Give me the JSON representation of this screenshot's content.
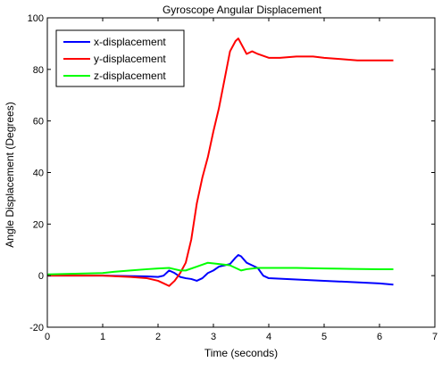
{
  "chart_data": {
    "type": "line",
    "title": "Gyroscope Angular Displacement",
    "xlabel": "Time (seconds)",
    "ylabel": "Angle Displacement (Degrees)",
    "xlim": [
      0,
      7
    ],
    "ylim": [
      -20,
      100
    ],
    "xticks": [
      0,
      1,
      2,
      3,
      4,
      5,
      6,
      7
    ],
    "yticks": [
      -20,
      0,
      20,
      40,
      60,
      80,
      100
    ],
    "xtick_labels": [
      "0",
      "1",
      "2",
      "3",
      "4",
      "5",
      "6",
      "7"
    ],
    "ytick_labels": [
      "-20",
      "0",
      "20",
      "40",
      "60",
      "80",
      "100"
    ],
    "grid": false,
    "legend": "top-left",
    "series": [
      {
        "name": "x-displacement",
        "color": "#0000ff",
        "x": [
          0,
          1,
          1.8,
          2.0,
          2.1,
          2.2,
          2.3,
          2.4,
          2.5,
          2.6,
          2.7,
          2.8,
          2.9,
          3.0,
          3.1,
          3.2,
          3.3,
          3.4,
          3.45,
          3.5,
          3.6,
          3.7,
          3.8,
          3.9,
          4.0,
          4.5,
          5.0,
          5.5,
          6.0,
          6.25
        ],
        "y": [
          0,
          0,
          -0.3,
          -0.5,
          0,
          2,
          1,
          -0.5,
          -1,
          -1.3,
          -2,
          -1,
          1,
          2,
          3.5,
          4,
          4.5,
          7,
          8,
          7.5,
          5,
          4,
          3,
          0,
          -1,
          -1.5,
          -2,
          -2.5,
          -3,
          -3.5
        ]
      },
      {
        "name": "y-displacement",
        "color": "#ff0000",
        "x": [
          0,
          1,
          1.5,
          1.8,
          2.0,
          2.1,
          2.2,
          2.3,
          2.4,
          2.5,
          2.6,
          2.7,
          2.8,
          2.9,
          3.0,
          3.1,
          3.2,
          3.3,
          3.4,
          3.45,
          3.5,
          3.6,
          3.7,
          3.8,
          4.0,
          4.2,
          4.5,
          4.8,
          5.0,
          5.3,
          5.6,
          6.0,
          6.25
        ],
        "y": [
          0,
          0,
          -0.5,
          -1,
          -2,
          -3,
          -4,
          -2,
          1,
          5,
          14,
          28,
          38,
          46,
          56,
          65,
          76,
          87,
          91,
          92,
          90,
          86,
          87,
          86,
          84.5,
          84.5,
          85,
          85,
          84.5,
          84,
          83.5,
          83.5,
          83.5
        ]
      },
      {
        "name": "z-displacement",
        "color": "#00ff00",
        "x": [
          0,
          1,
          1.2,
          1.5,
          1.8,
          2.0,
          2.2,
          2.3,
          2.4,
          2.5,
          2.7,
          2.9,
          3.1,
          3.3,
          3.4,
          3.5,
          3.6,
          3.8,
          4.0,
          4.5,
          5.0,
          5.5,
          6.0,
          6.25
        ],
        "y": [
          0.5,
          1,
          1.5,
          2,
          2.5,
          2.8,
          3,
          2.5,
          2,
          2,
          3.5,
          5,
          4.5,
          4,
          3,
          2,
          2.5,
          3,
          3,
          3,
          2.8,
          2.6,
          2.5,
          2.5
        ]
      }
    ]
  }
}
